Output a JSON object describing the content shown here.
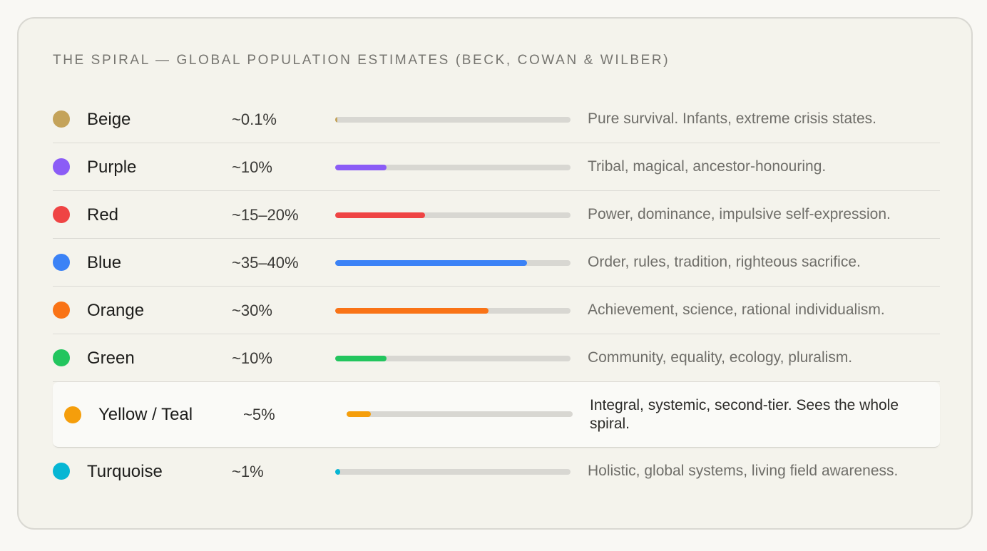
{
  "title": "THE SPIRAL — GLOBAL POPULATION ESTIMATES (BECK, COWAN & WILBER)",
  "stages": [
    {
      "name": "Beige",
      "percent_label": "~0.1%",
      "level": 0.001,
      "color": "#c4a35a",
      "description": "Pure survival. Infants, extreme crisis states.",
      "highlighted": false
    },
    {
      "name": "Purple",
      "percent_label": "~10%",
      "level": 0.1,
      "color": "#8b5cf6",
      "description": "Tribal, magical, ancestor-honouring.",
      "highlighted": false
    },
    {
      "name": "Red",
      "percent_label": "~15–20%",
      "level": 0.175,
      "color": "#ef4444",
      "description": "Power, dominance, impulsive self-expression.",
      "highlighted": false
    },
    {
      "name": "Blue",
      "percent_label": "~35–40%",
      "level": 0.375,
      "color": "#3b82f6",
      "description": "Order, rules, tradition, righteous sacrifice.",
      "highlighted": false
    },
    {
      "name": "Orange",
      "percent_label": "~30%",
      "level": 0.3,
      "color": "#f97316",
      "description": "Achievement, science, rational individualism.",
      "highlighted": false
    },
    {
      "name": "Green",
      "percent_label": "~10%",
      "level": 0.1,
      "color": "#22c55e",
      "description": "Community, equality, ecology, pluralism.",
      "highlighted": false
    },
    {
      "name": "Yellow / Teal",
      "percent_label": "~5%",
      "level": 0.05,
      "color": "#f59e0b",
      "description": "Integral, systemic, second-tier. Sees the whole spiral.",
      "highlighted": true
    },
    {
      "name": "Turquoise",
      "percent_label": "~1%",
      "level": 0.01,
      "color": "#06b6d4",
      "description": "Holistic, global systems, living field awareness.",
      "highlighted": false
    }
  ],
  "scale_max": 0.46
}
